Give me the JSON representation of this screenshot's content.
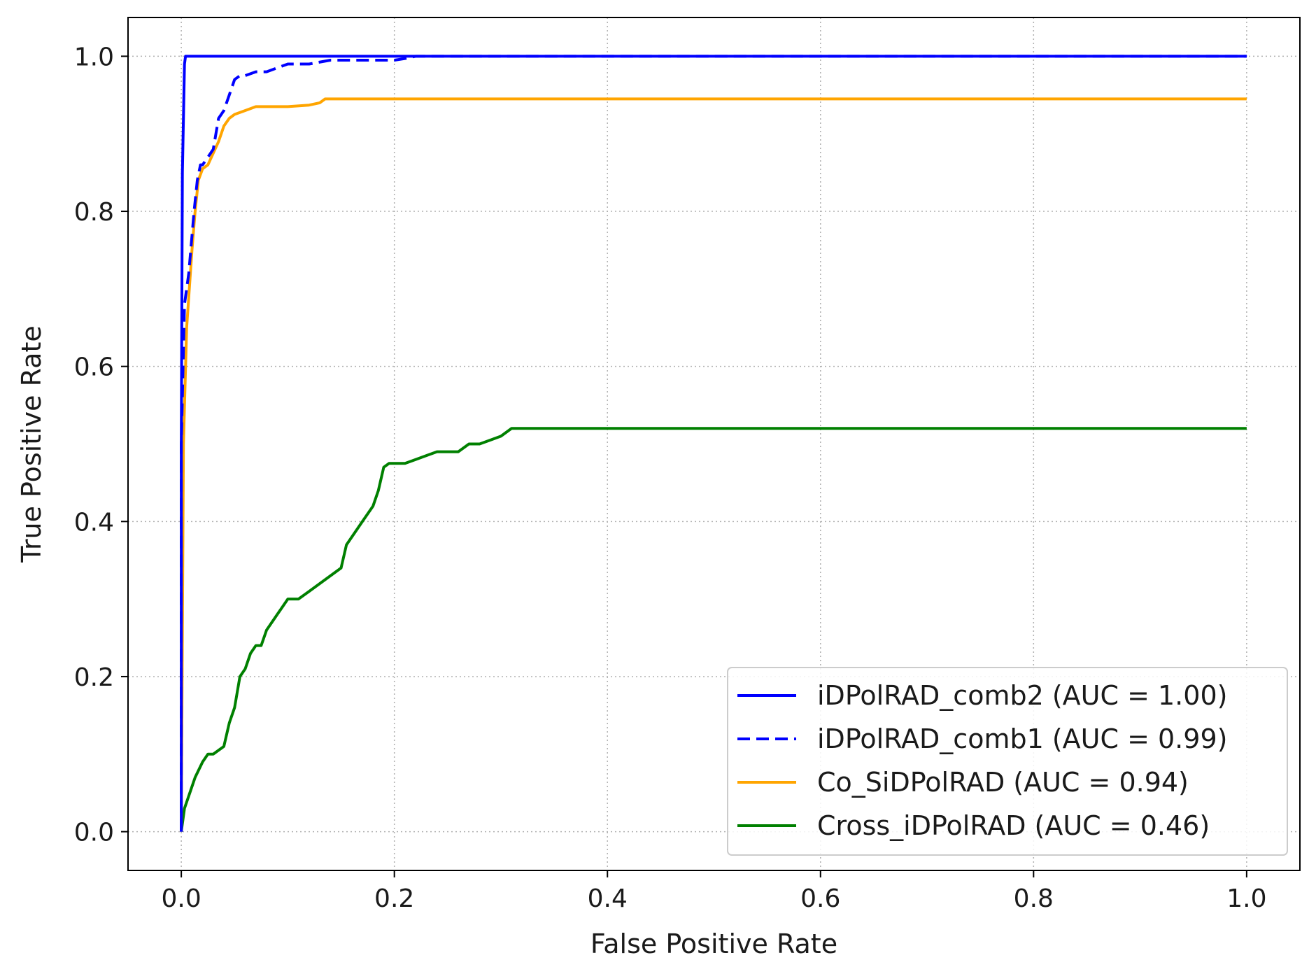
{
  "chart_data": {
    "type": "line",
    "title": "",
    "xlabel": "False Positive Rate",
    "ylabel": "True Positive Rate",
    "xlim": [
      -0.05,
      1.05
    ],
    "ylim": [
      -0.05,
      1.05
    ],
    "xticks": [
      0.0,
      0.2,
      0.4,
      0.6,
      0.8,
      1.0
    ],
    "yticks": [
      0.0,
      0.2,
      0.4,
      0.6,
      0.8,
      1.0
    ],
    "xtick_labels": [
      "0.0",
      "0.2",
      "0.4",
      "0.6",
      "0.8",
      "1.0"
    ],
    "ytick_labels": [
      "0.0",
      "0.2",
      "0.4",
      "0.6",
      "0.8",
      "1.0"
    ],
    "grid": true,
    "grid_style": "dotted",
    "legend_position": "lower-right",
    "series": [
      {
        "name": "iDPolRAD_comb2 (AUC = 1.00)",
        "color": "#0000ff",
        "dash": "solid",
        "x": [
          0.0,
          0.0,
          0.001,
          0.003,
          0.004,
          1.0
        ],
        "y": [
          0.0,
          0.5,
          0.85,
          0.99,
          1.0,
          1.0
        ]
      },
      {
        "name": "iDPolRAD_comb1 (AUC = 0.99)",
        "color": "#0000ff",
        "dash": "dashed",
        "x": [
          0.0,
          0.0,
          0.003,
          0.007,
          0.012,
          0.015,
          0.018,
          0.02,
          0.025,
          0.03,
          0.035,
          0.04,
          0.045,
          0.05,
          0.055,
          0.06,
          0.07,
          0.08,
          0.09,
          0.1,
          0.12,
          0.14,
          0.16,
          0.18,
          0.2,
          0.21,
          0.22,
          1.0
        ],
        "y": [
          0.0,
          0.5,
          0.68,
          0.72,
          0.8,
          0.84,
          0.86,
          0.86,
          0.87,
          0.88,
          0.92,
          0.93,
          0.95,
          0.97,
          0.975,
          0.975,
          0.98,
          0.98,
          0.985,
          0.99,
          0.99,
          0.995,
          0.995,
          0.995,
          0.995,
          0.997,
          1.0,
          1.0
        ]
      },
      {
        "name": "Co_SiDPolRAD (AUC = 0.94)",
        "color": "#ffa500",
        "dash": "solid",
        "x": [
          0.0,
          0.002,
          0.005,
          0.01,
          0.013,
          0.016,
          0.02,
          0.025,
          0.03,
          0.035,
          0.04,
          0.045,
          0.05,
          0.06,
          0.07,
          0.08,
          0.1,
          0.12,
          0.13,
          0.135,
          1.0
        ],
        "y": [
          0.0,
          0.5,
          0.65,
          0.75,
          0.8,
          0.84,
          0.855,
          0.86,
          0.875,
          0.89,
          0.91,
          0.92,
          0.925,
          0.93,
          0.935,
          0.935,
          0.935,
          0.937,
          0.94,
          0.945,
          0.945
        ]
      },
      {
        "name": "Cross_iDPolRAD (AUC = 0.46)",
        "color": "#008000",
        "dash": "solid",
        "x": [
          0.0,
          0.003,
          0.008,
          0.013,
          0.02,
          0.025,
          0.03,
          0.04,
          0.045,
          0.05,
          0.055,
          0.06,
          0.065,
          0.07,
          0.075,
          0.08,
          0.085,
          0.09,
          0.095,
          0.1,
          0.11,
          0.12,
          0.13,
          0.14,
          0.15,
          0.155,
          0.16,
          0.17,
          0.175,
          0.18,
          0.185,
          0.19,
          0.195,
          0.2,
          0.21,
          0.22,
          0.23,
          0.24,
          0.25,
          0.26,
          0.27,
          0.28,
          0.29,
          0.3,
          0.31,
          0.32,
          1.0
        ],
        "y": [
          0.0,
          0.03,
          0.05,
          0.07,
          0.09,
          0.1,
          0.1,
          0.11,
          0.14,
          0.16,
          0.2,
          0.21,
          0.23,
          0.24,
          0.24,
          0.26,
          0.27,
          0.28,
          0.29,
          0.3,
          0.3,
          0.31,
          0.32,
          0.33,
          0.34,
          0.37,
          0.38,
          0.4,
          0.41,
          0.42,
          0.44,
          0.47,
          0.475,
          0.475,
          0.475,
          0.48,
          0.485,
          0.49,
          0.49,
          0.49,
          0.5,
          0.5,
          0.505,
          0.51,
          0.52,
          0.52,
          0.52
        ]
      }
    ]
  }
}
